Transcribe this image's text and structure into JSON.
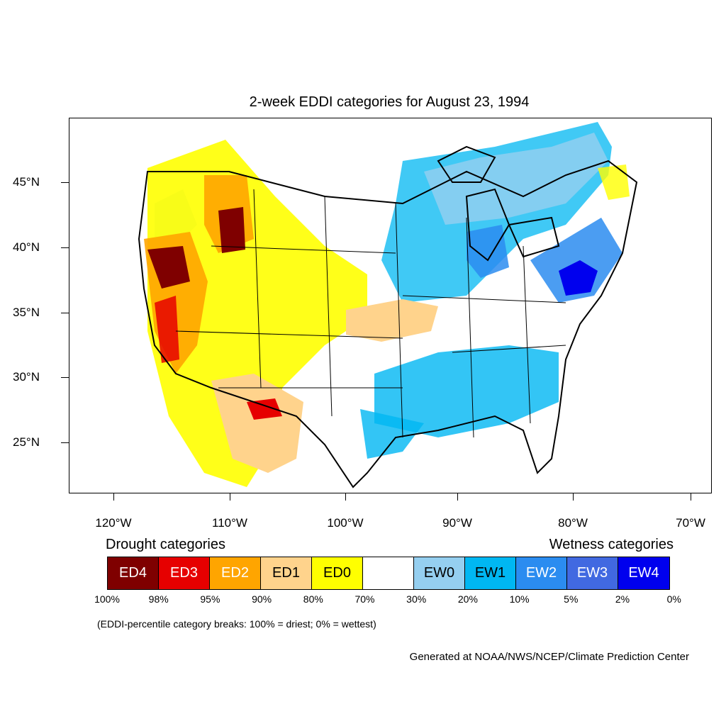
{
  "title": "2-week EDDI categories for August 23, 1994",
  "lat_labels": [
    "45°N",
    "40°N",
    "35°N",
    "30°N",
    "25°N"
  ],
  "lon_labels": [
    "120°W",
    "110°W",
    "100°W",
    "90°W",
    "80°W",
    "70°W"
  ],
  "drought_heading": "Drought categories",
  "wetness_heading": "Wetness categories",
  "categories": [
    {
      "label": "ED4",
      "color": "#7f0000",
      "text_color": "#ffffff"
    },
    {
      "label": "ED3",
      "color": "#e60000",
      "text_color": "#ffffff"
    },
    {
      "label": "ED2",
      "color": "#ffa500",
      "text_color": "#ffffff"
    },
    {
      "label": "ED1",
      "color": "#ffd38c",
      "text_color": "#000000"
    },
    {
      "label": "ED0",
      "color": "#ffff00",
      "text_color": "#000000"
    },
    {
      "label": "",
      "color": "#ffffff",
      "text_color": "#000000"
    },
    {
      "label": "EW0",
      "color": "#95cff0",
      "text_color": "#000000"
    },
    {
      "label": "EW1",
      "color": "#00b7f2",
      "text_color": "#000000"
    },
    {
      "label": "EW2",
      "color": "#2b8cf0",
      "text_color": "#ffffff"
    },
    {
      "label": "EW3",
      "color": "#4169e1",
      "text_color": "#ffffff"
    },
    {
      "label": "EW4",
      "color": "#0000ee",
      "text_color": "#ffffff"
    }
  ],
  "breaks": [
    "100%",
    "98%",
    "95%",
    "90%",
    "80%",
    "70%",
    "30%",
    "20%",
    "10%",
    "5%",
    "2%",
    "0%"
  ],
  "note": "(EDDI-percentile category breaks: 100% = driest; 0% = wettest)",
  "credit": "Generated at NOAA/NWS/NCEP/Climate Prediction Center"
}
